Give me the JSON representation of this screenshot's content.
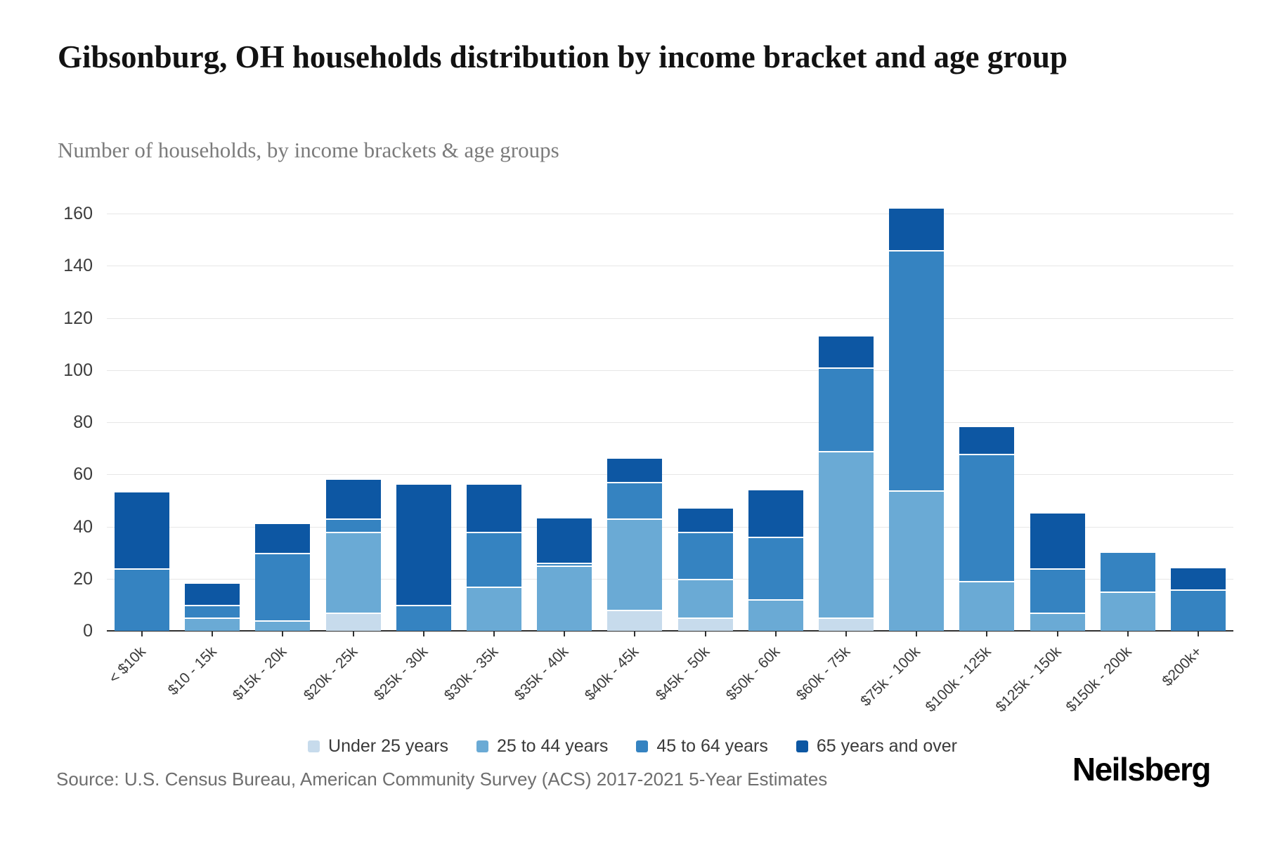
{
  "header": {
    "title": "Gibsonburg, OH households distribution by income bracket and age group",
    "subtitle": "Number of households, by income brackets & age groups"
  },
  "footer": {
    "source": "Source: U.S. Census Bureau, American Community Survey (ACS) 2017-2021 5-Year Estimates",
    "brand": "Neilsberg"
  },
  "colors": {
    "under_25": "#c7dbec",
    "age_25_44": "#6aaad5",
    "age_45_64": "#3583c1",
    "age_65_over": "#0d57a3",
    "gridline": "#e7e7e7",
    "axis": "#2f2f2f",
    "tick_text": "#3c3c3c"
  },
  "chart_data": {
    "type": "bar",
    "stacked": true,
    "title": "Gibsonburg, OH households distribution by income bracket and age group",
    "xlabel": "",
    "ylabel": "",
    "ylim": [
      0,
      160
    ],
    "ytick_step": 20,
    "yticks": [
      0,
      20,
      40,
      60,
      80,
      100,
      120,
      140,
      160
    ],
    "grid": true,
    "legend_position": "bottom",
    "categories": [
      "< $10k",
      "$10 - 15k",
      "$15k - 20k",
      "$20k - 25k",
      "$25k - 30k",
      "$30k - 35k",
      "$35k - 40k",
      "$40k - 45k",
      "$45k - 50k",
      "$50k - 60k",
      "$60k - 75k",
      "$75k - 100k",
      "$100k - 125k",
      "$125k - 150k",
      "$150k - 200k",
      "$200k+"
    ],
    "series": [
      {
        "name": "Under 25 years",
        "color": "#c7dbec",
        "values": [
          0,
          0,
          0,
          7,
          0,
          0,
          0,
          8,
          5,
          0,
          5,
          0,
          0,
          0,
          0,
          0
        ]
      },
      {
        "name": "25 to 44 years",
        "color": "#6aaad5",
        "values": [
          0,
          5,
          4,
          31,
          0,
          17,
          25,
          35,
          15,
          12,
          64,
          54,
          19,
          7,
          15,
          0
        ]
      },
      {
        "name": "45 to 64 years",
        "color": "#3583c1",
        "values": [
          24,
          5,
          26,
          5,
          10,
          21,
          1,
          14,
          18,
          24,
          32,
          92,
          49,
          17,
          15,
          16
        ]
      },
      {
        "name": "65 years and over",
        "color": "#0d57a3",
        "values": [
          29,
          8,
          11,
          15,
          46,
          18,
          17,
          9,
          9,
          18,
          12,
          16,
          10,
          21,
          0,
          8
        ]
      }
    ],
    "totals": [
      53,
      18,
      41,
      58,
      56,
      56,
      43,
      66,
      47,
      54,
      113,
      162,
      78,
      45,
      30,
      24
    ]
  }
}
